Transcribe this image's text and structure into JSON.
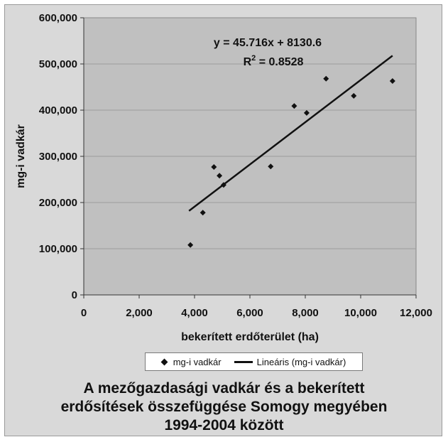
{
  "chart_data": {
    "type": "scatter",
    "xlabel": "bekerített erdőterület (ha)",
    "ylabel": "mg-i vadkár",
    "xlim": [
      0,
      12000
    ],
    "ylim": [
      0,
      600000
    ],
    "x_ticks": [
      "0",
      "2,000",
      "4,000",
      "6,000",
      "8,000",
      "10,000",
      "12,000"
    ],
    "y_ticks": [
      "0",
      "100,000",
      "200,000",
      "300,000",
      "400,000",
      "500,000",
      "600,000"
    ],
    "grid": "horizontal",
    "series": [
      {
        "name": "mg-i vadkár",
        "marker": "diamond",
        "x": [
          3850,
          4300,
          4700,
          4900,
          5050,
          6750,
          7600,
          8050,
          8750,
          9750,
          11150
        ],
        "y": [
          108000,
          178000,
          277000,
          258000,
          238000,
          278000,
          409000,
          394000,
          468000,
          431000,
          463000
        ]
      },
      {
        "name": "Lineáris (mg-i vadkár)",
        "type": "line",
        "x": [
          3800,
          11150
        ],
        "y": [
          181851,
          517864
        ]
      }
    ],
    "annotations": {
      "equation": "y = 45.716x + 8130.6",
      "r2_prefix": "R",
      "r2_sup": "2",
      "r2_value": " = 0.8528"
    },
    "legend_position": "bottom",
    "colors": {
      "plot_background": "#c0c0c0",
      "figure_background": "#d9d9d9",
      "marker": "#111111",
      "gridline": "#9c9c9c"
    }
  },
  "legend": {
    "series_label": "mg-i vadkár",
    "trend_label": "Lineáris (mg-i vadkár)"
  },
  "caption": {
    "line1": "A mezőgazdasági vadkár és a bekerített",
    "line2": "erdősítések összefüggése Somogy megyében",
    "line3": "1994-2004 között"
  }
}
